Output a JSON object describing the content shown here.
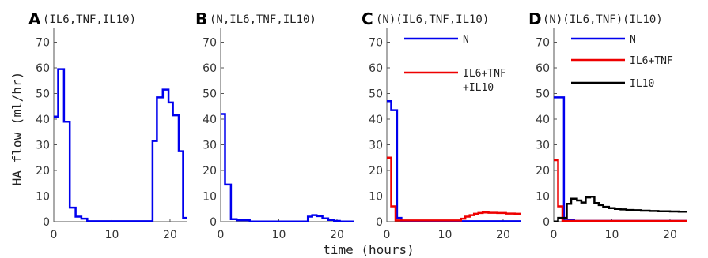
{
  "axes": {
    "ylabel": "HA flow (ml/hr)",
    "xlabel": "time (hours)"
  },
  "chart_data": [
    {
      "type": "line",
      "panel": "A",
      "title": "(IL6,TNF,IL10)",
      "xlim": [
        0,
        23
      ],
      "ylim": [
        0,
        72
      ],
      "xticks": [
        0,
        10,
        20
      ],
      "yticks": [
        0,
        10,
        20,
        30,
        40,
        50,
        60,
        70
      ],
      "legend": [],
      "series": [
        {
          "name": "",
          "color": "#0000ee",
          "step": true,
          "x": [
            0,
            0.75,
            0.75,
            1.75,
            1.75,
            2.75,
            2.75,
            3.75,
            3.75,
            4.75,
            4.75,
            5.75,
            5.75,
            17.0,
            17.0,
            17.75,
            17.75,
            18.75,
            18.75,
            19.75,
            19.75,
            20.5,
            20.5,
            21.5,
            21.5,
            22.25,
            22.25,
            23.0
          ],
          "y": [
            41,
            41,
            59.5,
            59.5,
            39,
            39,
            5.5,
            5.5,
            2,
            2,
            1.2,
            1.2,
            0.2,
            0.2,
            31.5,
            31.5,
            48.5,
            48.5,
            51.5,
            51.5,
            46.5,
            46.5,
            41.5,
            41.5,
            27.5,
            27.5,
            1.5,
            1.5
          ]
        }
      ]
    },
    {
      "type": "line",
      "panel": "B",
      "title": "(N,IL6,TNF,IL10)",
      "xlim": [
        0,
        23
      ],
      "ylim": [
        0,
        72
      ],
      "xticks": [
        0,
        10,
        20
      ],
      "yticks": [
        0,
        10,
        20,
        30,
        40,
        50,
        60,
        70
      ],
      "legend": [],
      "series": [
        {
          "name": "",
          "color": "#0000ee",
          "step": true,
          "x": [
            0,
            0.75,
            0.75,
            1.75,
            1.75,
            2.75,
            2.75,
            5.0,
            5.0,
            15.0,
            15.0,
            15.75,
            15.75,
            16.5,
            16.5,
            17.5,
            17.5,
            18.5,
            18.5,
            19.5,
            19.5,
            20.5,
            20.5,
            23.0
          ],
          "y": [
            42,
            42,
            14.5,
            14.5,
            1.0,
            1.0,
            0.6,
            0.6,
            0.1,
            0.1,
            2.0,
            2.0,
            2.6,
            2.6,
            2.2,
            2.2,
            1.3,
            1.3,
            0.7,
            0.7,
            0.3,
            0.3,
            0.1,
            0.1
          ]
        }
      ]
    },
    {
      "type": "line",
      "panel": "C",
      "title": "(N)(IL6,TNF,IL10)",
      "xlim": [
        0,
        23
      ],
      "ylim": [
        0,
        72
      ],
      "xticks": [
        0,
        10,
        20
      ],
      "yticks": [
        0,
        10,
        20,
        30,
        40,
        50,
        60,
        70
      ],
      "legend": [
        "N",
        "IL6+TNF",
        "+IL10"
      ],
      "series": [
        {
          "name": "N",
          "color": "#0000ee",
          "step": true,
          "x": [
            0,
            0.75,
            0.75,
            1.75,
            1.75,
            2.5,
            2.5,
            23.0
          ],
          "y": [
            47,
            47,
            43.5,
            43.5,
            1.5,
            1.5,
            0.2,
            0.2
          ]
        },
        {
          "name": "IL6+TNF+IL10",
          "color": "#ee0000",
          "step": true,
          "x": [
            0,
            0.75,
            0.75,
            1.5,
            1.5,
            2.25,
            2.25,
            12.75,
            12.75,
            13.5,
            13.5,
            14.25,
            14.25,
            15.0,
            15.0,
            15.75,
            15.75,
            16.5,
            16.5,
            17.5,
            17.5,
            19.0,
            19.0,
            20.5,
            20.5,
            22.0,
            22.0,
            23.0
          ],
          "y": [
            25,
            25,
            6,
            6,
            0.5,
            0.5,
            0.5,
            0.5,
            1.2,
            1.2,
            2.0,
            2.0,
            2.6,
            2.6,
            3.1,
            3.1,
            3.4,
            3.4,
            3.6,
            3.6,
            3.5,
            3.5,
            3.4,
            3.4,
            3.2,
            3.2,
            3.1,
            3.1
          ]
        }
      ]
    },
    {
      "type": "line",
      "panel": "D",
      "title": "(N)(IL6,TNF)(IL10)",
      "xlim": [
        0,
        23
      ],
      "ylim": [
        0,
        72
      ],
      "xticks": [
        0,
        10,
        20
      ],
      "yticks": [
        0,
        10,
        20,
        30,
        40,
        50,
        60,
        70
      ],
      "legend": [
        "N",
        "IL6+TNF",
        "IL10"
      ],
      "series": [
        {
          "name": "N",
          "color": "#0000ee",
          "step": true,
          "x": [
            0,
            1.75,
            1.75,
            2.5,
            2.5,
            3.5,
            3.5,
            23.0
          ],
          "y": [
            48.5,
            48.5,
            0.5,
            0.5,
            0.8,
            0.8,
            0.3,
            0.3
          ]
        },
        {
          "name": "IL6+TNF",
          "color": "#ee0000",
          "step": true,
          "x": [
            0,
            0.75,
            0.75,
            1.5,
            1.5,
            2.25,
            2.25,
            23.0
          ],
          "y": [
            24,
            24,
            6,
            6,
            0.3,
            0.3,
            0.3,
            0.3
          ]
        },
        {
          "name": "IL10",
          "color": "#000000",
          "step": true,
          "x": [
            0,
            0.75,
            0.75,
            1.5,
            1.5,
            2.25,
            2.25,
            3.0,
            3.0,
            4.0,
            4.0,
            4.75,
            4.75,
            5.5,
            5.5,
            6.25,
            6.25,
            7.0,
            7.0,
            7.75,
            7.75,
            8.5,
            8.5,
            9.5,
            9.5,
            10.5,
            10.5,
            11.5,
            11.5,
            12.5,
            12.5,
            13.75,
            13.75,
            15.0,
            15.0,
            16.5,
            16.5,
            18.0,
            18.0,
            20.0,
            20.0,
            21.5,
            21.5,
            23.0
          ],
          "y": [
            0.1,
            0.1,
            1.5,
            1.5,
            1.5,
            1.5,
            7.0,
            7.0,
            9.0,
            9.0,
            8.3,
            8.3,
            7.5,
            7.5,
            9.5,
            9.5,
            9.8,
            9.8,
            7.3,
            7.3,
            6.5,
            6.5,
            5.8,
            5.8,
            5.3,
            5.3,
            5.0,
            5.0,
            4.8,
            4.8,
            4.6,
            4.6,
            4.5,
            4.5,
            4.3,
            4.3,
            4.2,
            4.2,
            4.1,
            4.1,
            4.0,
            4.0,
            3.9,
            3.9
          ]
        }
      ]
    }
  ]
}
